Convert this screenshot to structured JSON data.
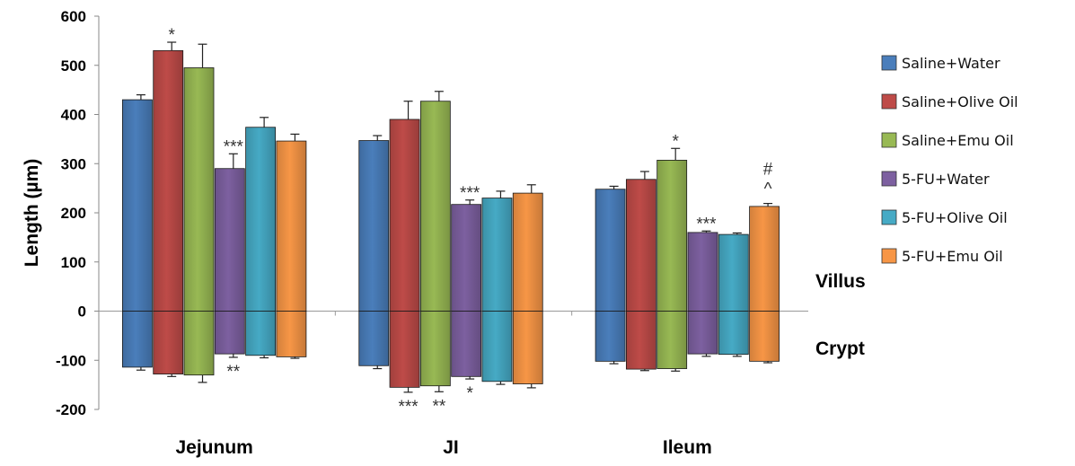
{
  "chart_data": {
    "type": "bar",
    "ylabel": "Length (µm)",
    "ylim": [
      -200,
      600
    ],
    "yticks": [
      -200,
      -100,
      0,
      100,
      200,
      300,
      400,
      500,
      600
    ],
    "categories": [
      "Jejunum",
      "JI",
      "Ileum"
    ],
    "grid": false,
    "legend_position": "right",
    "side_labels": {
      "upper": "Villus",
      "lower": "Crypt"
    },
    "series": [
      {
        "name": "Saline+Water",
        "color": "#4a7ebb",
        "villus": [
          430,
          347,
          248
        ],
        "villus_err": [
          10,
          10,
          6
        ],
        "crypt": [
          -114,
          -111,
          -102
        ],
        "crypt_err": [
          6,
          6,
          5
        ]
      },
      {
        "name": "Saline+Olive Oil",
        "color": "#be4b48",
        "villus": [
          530,
          390,
          268
        ],
        "villus_err": [
          17,
          37,
          16
        ],
        "crypt": [
          -128,
          -155,
          -118
        ],
        "crypt_err": [
          5,
          10,
          3
        ]
      },
      {
        "name": "Saline+Emu Oil",
        "color": "#98b954",
        "villus": [
          495,
          427,
          307
        ],
        "villus_err": [
          48,
          20,
          24
        ],
        "crypt": [
          -130,
          -152,
          -117
        ],
        "crypt_err": [
          15,
          12,
          5
        ]
      },
      {
        "name": "5-FU+Water",
        "color": "#7d60a0",
        "villus": [
          290,
          217,
          160
        ],
        "villus_err": [
          30,
          9,
          3
        ],
        "crypt": [
          -87,
          -133,
          -87
        ],
        "crypt_err": [
          7,
          5,
          5
        ]
      },
      {
        "name": "5-FU+Olive Oil",
        "color": "#46aac5",
        "villus": [
          374,
          230,
          156
        ],
        "villus_err": [
          20,
          14,
          3
        ],
        "crypt": [
          -90,
          -143,
          -88
        ],
        "crypt_err": [
          5,
          6,
          4
        ]
      },
      {
        "name": "5-FU+Emu Oil",
        "color": "#f79646",
        "villus": [
          346,
          240,
          213
        ],
        "villus_err": [
          14,
          17,
          6
        ],
        "crypt": [
          -93,
          -148,
          -102
        ],
        "crypt_err": [
          3,
          8,
          3
        ]
      }
    ],
    "annotations": [
      {
        "category": 0,
        "series": 1,
        "side": "villus",
        "text": "*"
      },
      {
        "category": 0,
        "series": 3,
        "side": "villus",
        "text": "***"
      },
      {
        "category": 0,
        "series": 3,
        "side": "crypt",
        "text": "**"
      },
      {
        "category": 1,
        "series": 3,
        "side": "villus",
        "text": "***"
      },
      {
        "category": 1,
        "series": 1,
        "side": "crypt",
        "text": "***"
      },
      {
        "category": 1,
        "series": 2,
        "side": "crypt",
        "text": "**"
      },
      {
        "category": 1,
        "series": 3,
        "side": "crypt",
        "text": "*"
      },
      {
        "category": 2,
        "series": 2,
        "side": "villus",
        "text": "*"
      },
      {
        "category": 2,
        "series": 3,
        "side": "villus",
        "text": "***"
      },
      {
        "category": 2,
        "series": 5,
        "side": "villus",
        "text": "^"
      },
      {
        "category": 2,
        "series": 5,
        "side": "villus",
        "text": "#"
      }
    ]
  }
}
